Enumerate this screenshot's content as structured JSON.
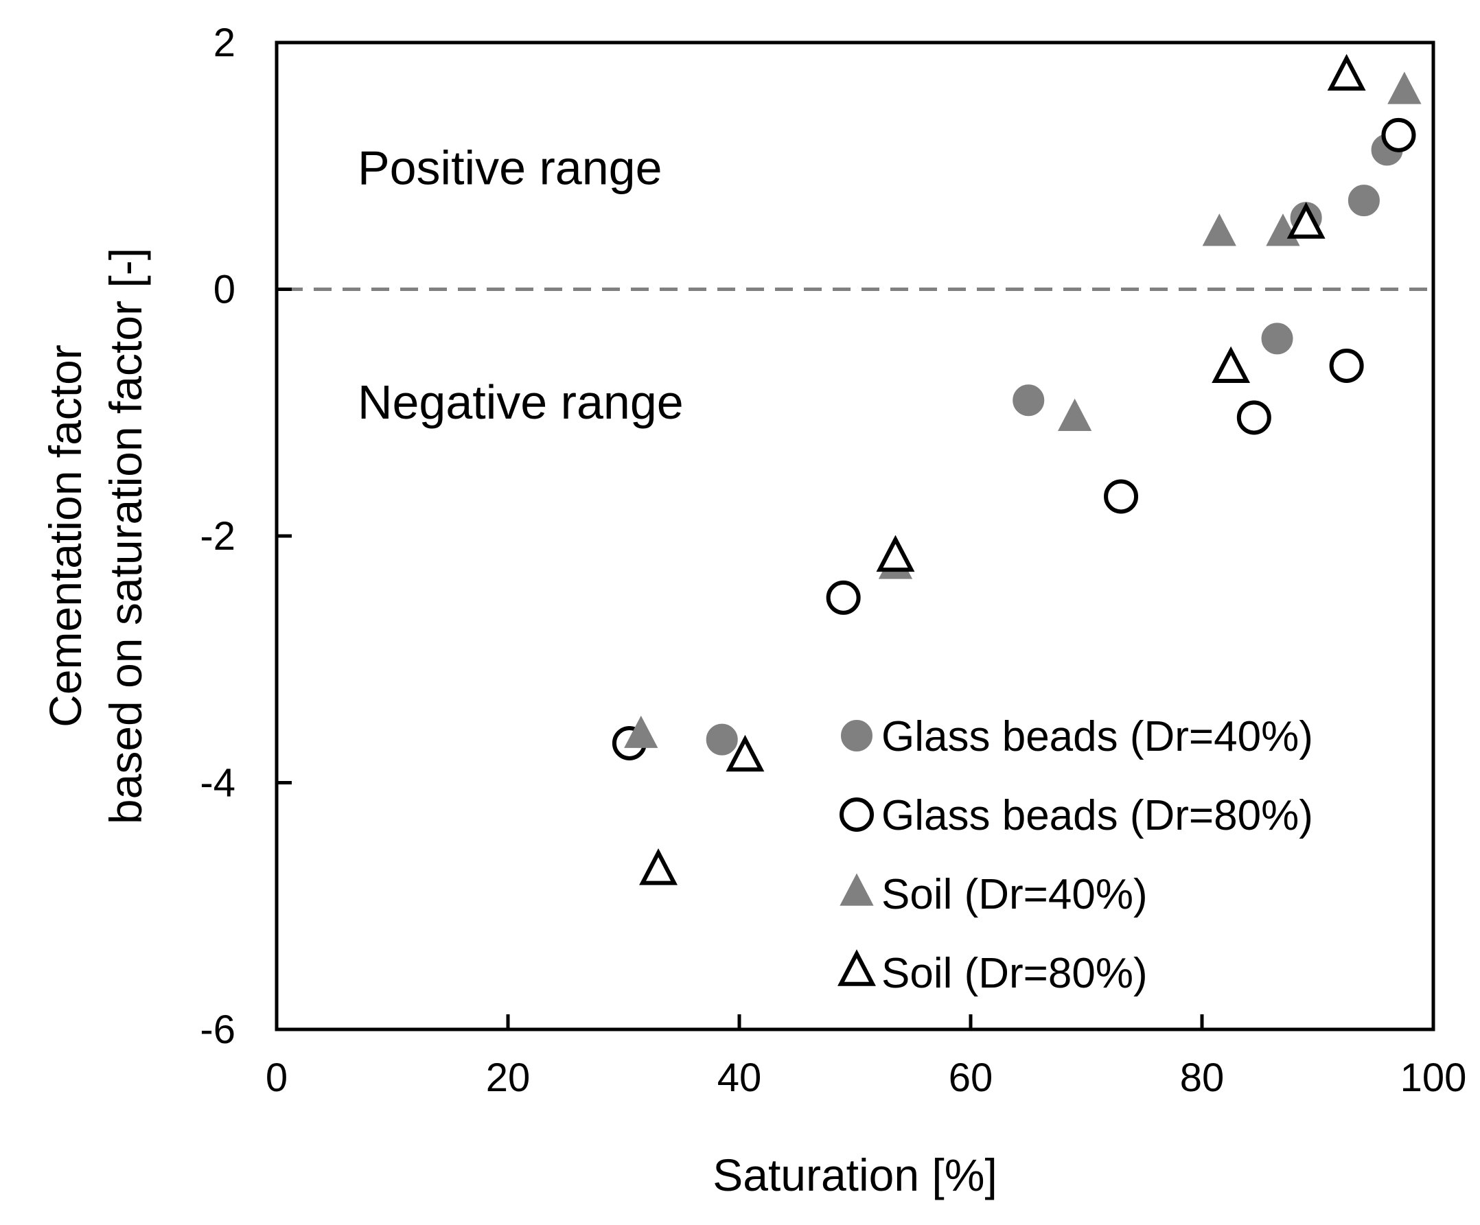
{
  "chart_data": {
    "type": "scatter",
    "xlabel": "Saturation [%]",
    "ylabel_lines": [
      "Cementation factor",
      "based on saturation factor [-]"
    ],
    "xlim": [
      0,
      100
    ],
    "ylim": [
      -6,
      2
    ],
    "xticks": [
      0,
      20,
      40,
      60,
      80,
      100
    ],
    "yticks": [
      -6,
      -4,
      -2,
      0,
      2
    ],
    "grid": false,
    "reference_line": {
      "y": 0,
      "style": "dashed",
      "color": "#808080"
    },
    "legend_position": "bottom-right",
    "annotations": [
      {
        "text": "Positive range",
        "x": 7,
        "y": 0.85
      },
      {
        "text": "Negative range",
        "x": 7,
        "y": -1.05
      }
    ],
    "series": [
      {
        "name": "Glass beads (Dr=40%)",
        "marker": "circle",
        "filled": true,
        "color": "#808080",
        "points": [
          [
            38.5,
            -3.65
          ],
          [
            65,
            -0.9
          ],
          [
            86.5,
            -0.4
          ],
          [
            89,
            0.58
          ],
          [
            94,
            0.72
          ],
          [
            96,
            1.13
          ]
        ]
      },
      {
        "name": "Glass beads (Dr=80%)",
        "marker": "circle",
        "filled": false,
        "color": "#000000",
        "points": [
          [
            30.5,
            -3.68
          ],
          [
            49,
            -2.5
          ],
          [
            73,
            -1.68
          ],
          [
            84.5,
            -1.04
          ],
          [
            92.5,
            -0.62
          ],
          [
            97,
            1.25
          ]
        ]
      },
      {
        "name": "Soil (Dr=40%)",
        "marker": "triangle",
        "filled": true,
        "color": "#808080",
        "points": [
          [
            31.5,
            -3.62
          ],
          [
            53.5,
            -2.25
          ],
          [
            69,
            -1.05
          ],
          [
            81.5,
            0.45
          ],
          [
            87,
            0.45
          ],
          [
            97.5,
            1.6
          ]
        ]
      },
      {
        "name": "Soil (Dr=80%)",
        "marker": "triangle",
        "filled": false,
        "color": "#000000",
        "points": [
          [
            33,
            -4.72
          ],
          [
            40.5,
            -3.8
          ],
          [
            53.5,
            -2.18
          ],
          [
            82.5,
            -0.65
          ],
          [
            89,
            0.52
          ],
          [
            92.5,
            1.72
          ]
        ]
      }
    ]
  }
}
